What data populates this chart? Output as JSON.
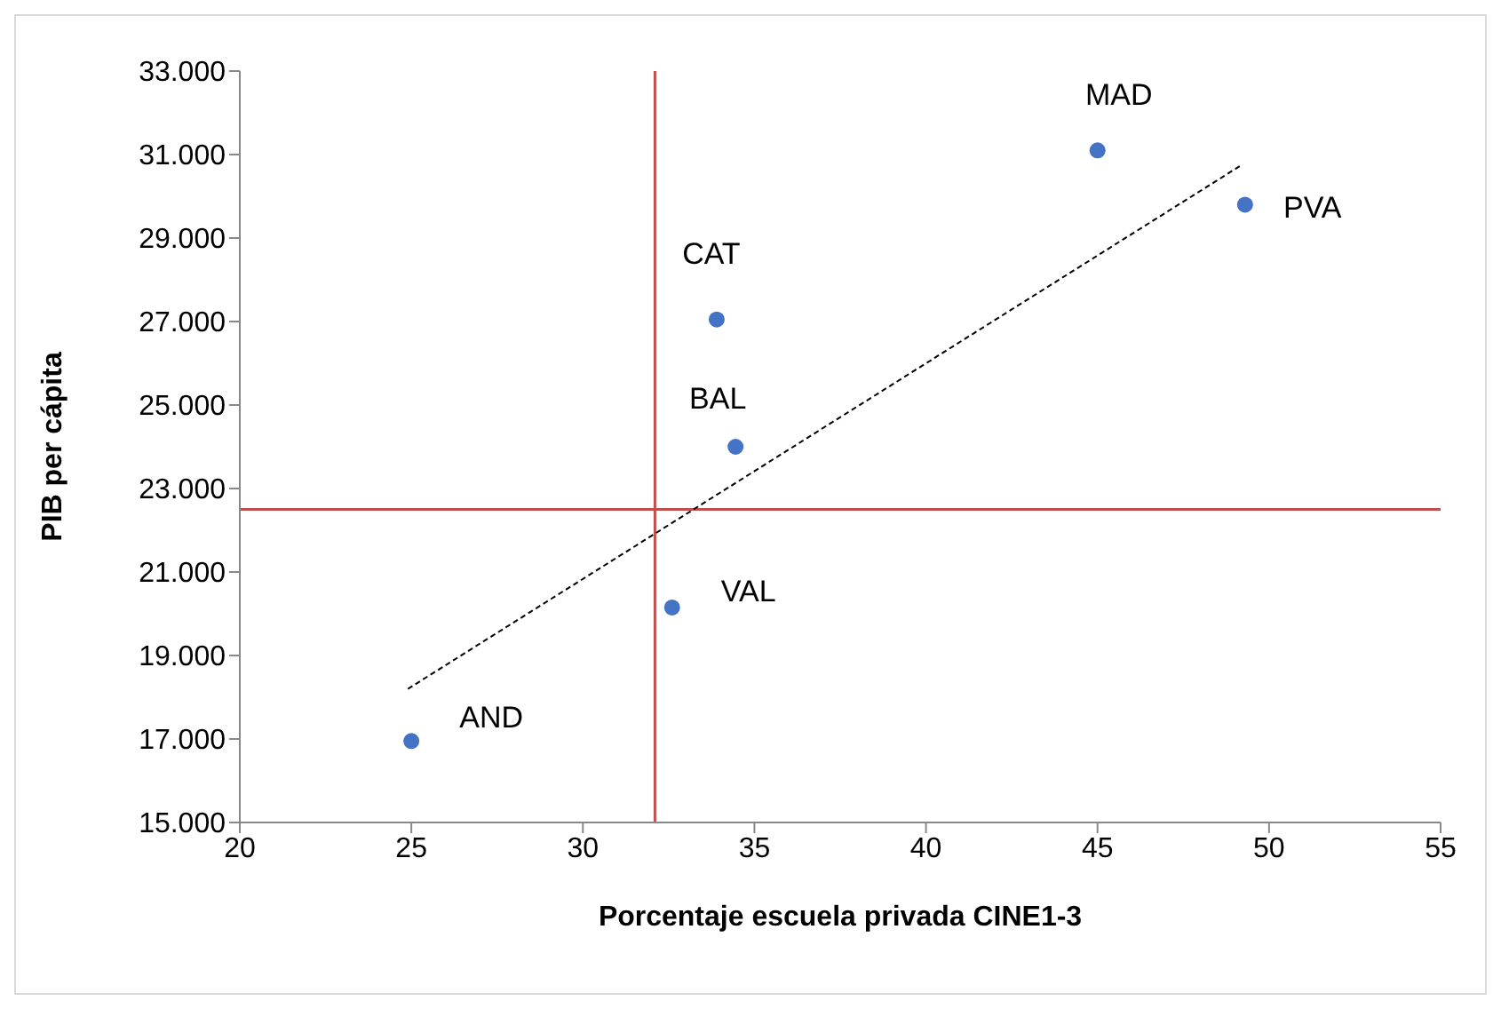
{
  "chart_data": {
    "type": "scatter",
    "xlabel": "Porcentaje escuela privada CINE1-3",
    "ylabel": "PIB per cápita",
    "series": [
      {
        "type": "scatter",
        "color": "#4472c4",
        "marker": "circle",
        "x": [
          25.0,
          32.6,
          34.45,
          33.9,
          45.0,
          49.3
        ],
        "values": [
          16950,
          20150,
          24000,
          27050,
          31100,
          29800
        ]
      },
      {
        "type": "line",
        "color": "#000000",
        "line_style": "dashed",
        "x": [
          24.9,
          49.2
        ],
        "values": [
          18200,
          30750
        ]
      }
    ],
    "annotations": [
      {
        "text": "AND",
        "x": 25.0,
        "y": 16950
      },
      {
        "text": "VAL",
        "x": 32.6,
        "y": 20150
      },
      {
        "text": "BAL",
        "x": 34.45,
        "y": 24000
      },
      {
        "text": "CAT",
        "x": 33.9,
        "y": 27050
      },
      {
        "text": "MAD",
        "x": 45.0,
        "y": 31100
      },
      {
        "text": "PVA",
        "x": 49.3,
        "y": 29800
      }
    ],
    "ref_lines": [
      {
        "axis": "x",
        "value": 32.1,
        "color": "#c0504d"
      },
      {
        "axis": "y",
        "value": 22500,
        "color": "#c0504d"
      }
    ],
    "xlim": [
      20,
      55
    ],
    "xticks": [
      20,
      25,
      30,
      35,
      40,
      45,
      50,
      55
    ],
    "ylim": [
      15000,
      33000
    ],
    "yticks": [
      {
        "value": 15000,
        "label": "15.000"
      },
      {
        "value": 17000,
        "label": "17.000"
      },
      {
        "value": 19000,
        "label": "19.000"
      },
      {
        "value": 21000,
        "label": "21.000"
      },
      {
        "value": 23000,
        "label": "23.000"
      },
      {
        "value": 25000,
        "label": "25.000"
      },
      {
        "value": 27000,
        "label": "27.000"
      },
      {
        "value": 29000,
        "label": "29.000"
      },
      {
        "value": 31000,
        "label": "31.000"
      },
      {
        "value": 33000,
        "label": "33.000"
      }
    ],
    "grid": false
  }
}
